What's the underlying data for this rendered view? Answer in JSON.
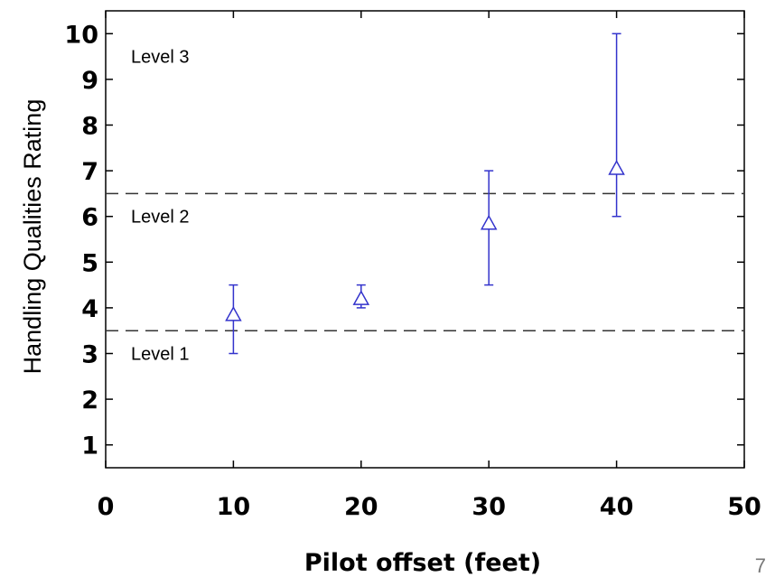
{
  "chart_data": {
    "type": "scatter",
    "xlabel": "Pilot offset (feet)",
    "ylabel": "Handling Qualities Rating",
    "xlim": [
      0,
      50
    ],
    "ylim": [
      0.5,
      10.5
    ],
    "x_ticks": [
      "0",
      "10",
      "20",
      "30",
      "40",
      "50"
    ],
    "y_ticks": [
      "1",
      "2",
      "3",
      "4",
      "5",
      "6",
      "7",
      "8",
      "9",
      "10"
    ],
    "grid": false,
    "points": [
      {
        "x": 10,
        "y": 3.85,
        "low": 3.0,
        "high": 4.5
      },
      {
        "x": 20,
        "y": 4.2,
        "low": 4.0,
        "high": 4.5
      },
      {
        "x": 30,
        "y": 5.85,
        "low": 4.5,
        "high": 7.0
      },
      {
        "x": 40,
        "y": 7.05,
        "low": 6.0,
        "high": 10.0
      }
    ],
    "boundary_lines": [
      3.5,
      6.5
    ],
    "regions": [
      {
        "label": "Level 3",
        "y": 9.5
      },
      {
        "label": "Level 2",
        "y": 6.0
      },
      {
        "label": "Level 1",
        "y": 3.0
      }
    ],
    "marker_color": "#3333cc"
  },
  "page_number": "7"
}
